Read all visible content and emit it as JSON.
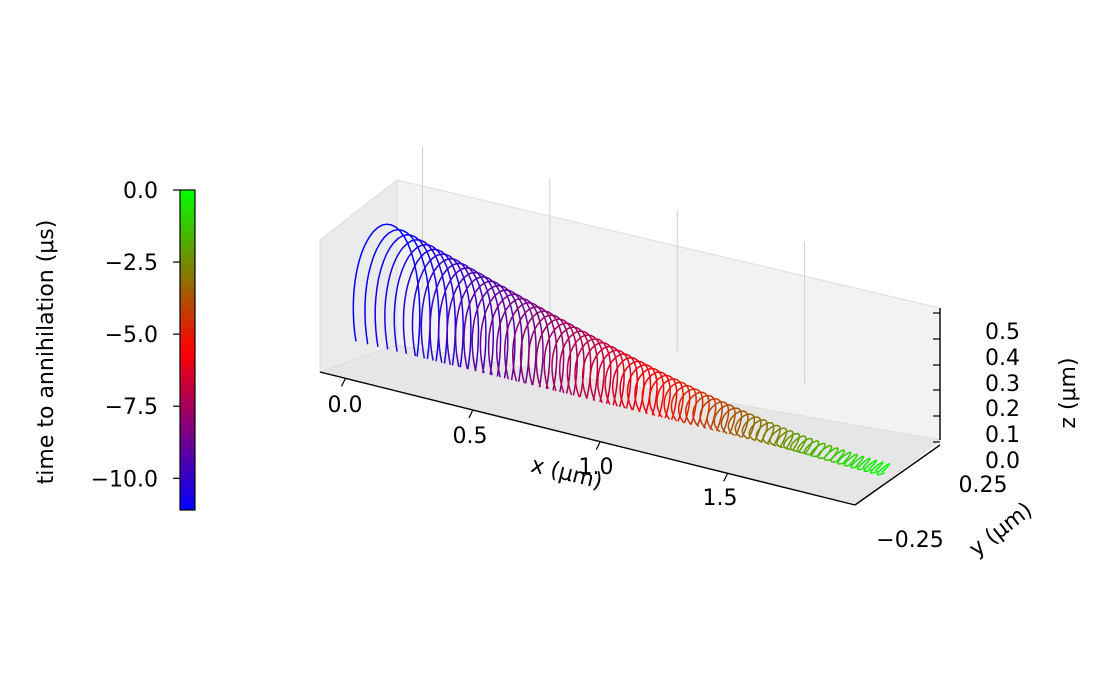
{
  "chart_data": {
    "type": "line3d",
    "axes": {
      "x": {
        "label": "x (μm)",
        "ticks": [
          "0.0",
          "0.5",
          "1.0",
          "1.5"
        ],
        "range": [
          -0.1,
          2.0
        ]
      },
      "y": {
        "label": "y (μm)",
        "ticks": [
          "−0.25",
          "0.25"
        ],
        "range": [
          -0.3,
          0.3
        ]
      },
      "z": {
        "label": "z (μm)",
        "ticks": [
          "0.0",
          "0.1",
          "0.2",
          "0.3",
          "0.4",
          "0.5"
        ],
        "range": [
          0.0,
          0.55
        ]
      }
    },
    "colorbar": {
      "label": "time to annihilation (μs)",
      "ticks": [
        "0.0",
        "−2.5",
        "−5.0",
        "−7.5",
        "−10.0"
      ],
      "range": [
        -11.1,
        0.0
      ],
      "colors": [
        "#0000ff",
        "#ff0000",
        "#00ff00"
      ]
    },
    "trajectory": {
      "description_values": "helical loops drifting in +x while shrinking in radius",
      "x_start": 0.0,
      "x_end": 1.95,
      "z_peak": 0.5,
      "loop_count": 70,
      "time_start": -11.1,
      "time_end": 0.0
    },
    "grid": true,
    "pane_color": "#f2f2f2"
  }
}
